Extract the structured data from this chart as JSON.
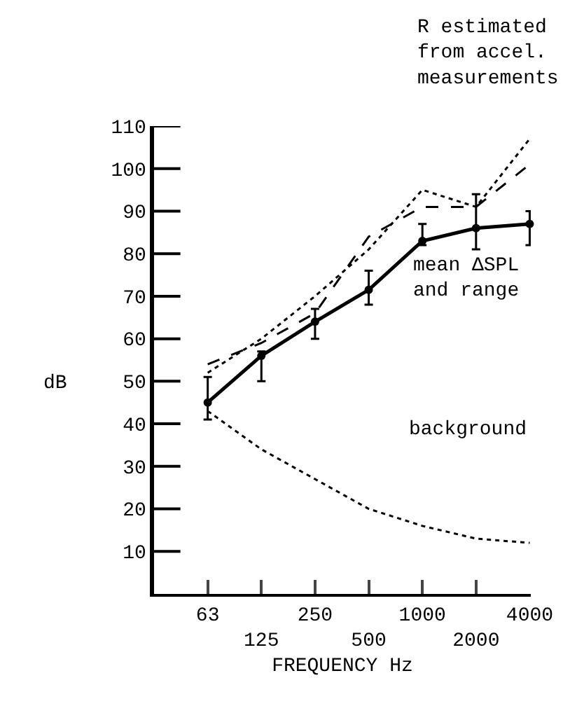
{
  "chart_data": {
    "type": "line",
    "xlabel": "FREQUENCY Hz",
    "ylabel": "dB",
    "categories": [
      "63",
      "125",
      "250",
      "500",
      "1000",
      "2000",
      "4000"
    ],
    "ylim": [
      0,
      110
    ],
    "yticks": [
      10,
      20,
      30,
      40,
      50,
      60,
      70,
      80,
      90,
      100,
      110
    ],
    "grid": false,
    "series": [
      {
        "color": "#000000",
        "line_style": "solid",
        "marker": "circle",
        "values": [
          45,
          56,
          64,
          71.5,
          83,
          86,
          87
        ],
        "errors": [
          [
            41,
            51
          ],
          [
            50,
            57
          ],
          [
            60,
            67
          ],
          [
            68,
            76
          ],
          [
            82,
            87
          ],
          [
            81,
            94
          ],
          [
            82,
            90
          ]
        ]
      },
      {
        "color": "#000000",
        "line_style": "dotted",
        "marker": "none",
        "values": [
          52,
          60,
          70,
          81,
          95,
          91,
          107
        ]
      },
      {
        "color": "#000000",
        "line_style": "dashed",
        "marker": "none",
        "values": [
          54,
          59,
          66,
          84,
          91,
          91,
          101
        ]
      },
      {
        "color": "#000000",
        "line_style": "dotted",
        "marker": "none",
        "values": [
          43,
          34,
          27,
          20,
          16,
          13,
          12
        ]
      }
    ],
    "annotations": [
      "R estimated\nfrom accel.\nmeasurements",
      "mean ΔSPL\nand range",
      "background"
    ]
  }
}
